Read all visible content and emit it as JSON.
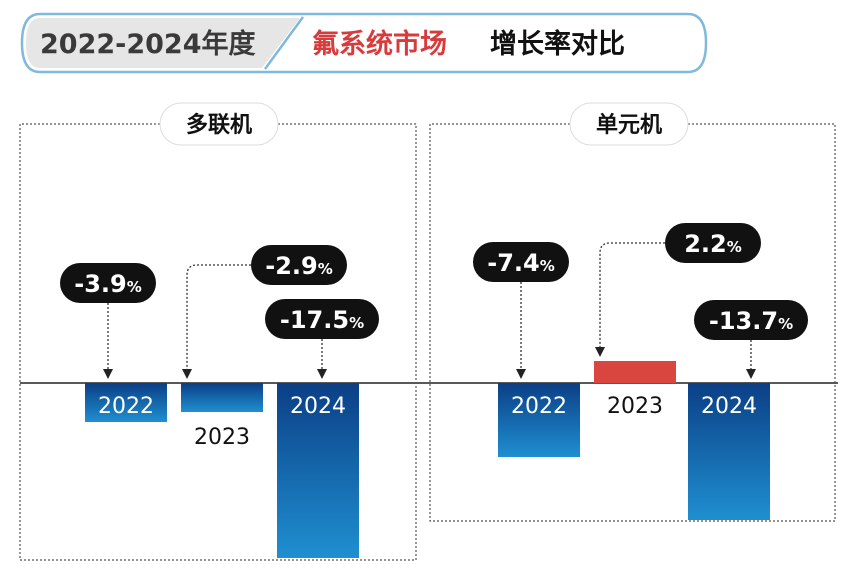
{
  "header": {
    "title_range": "2022-2024年度",
    "title_highlight": "氟系统市场",
    "title_rest": "增长率对比"
  },
  "colors": {
    "bar_negative_top": "#0b3f86",
    "bar_negative_bottom": "#1f8fd0",
    "bar_positive": "#d9453f",
    "callout_bg": "#111111",
    "highlight_text": "#d83b3b",
    "banner_border": "#7fb9dc"
  },
  "chart_data": [
    {
      "type": "bar",
      "title": "多联机",
      "categories": [
        "2022",
        "2023",
        "2024"
      ],
      "values": [
        -3.9,
        -2.9,
        -17.5
      ],
      "labels": [
        "-3.9%",
        "-2.9%",
        "-17.5%"
      ]
    },
    {
      "type": "bar",
      "title": "单元机",
      "categories": [
        "2022",
        "2023",
        "2024"
      ],
      "values": [
        -7.4,
        2.2,
        -13.7
      ],
      "labels": [
        "-7.4%",
        "2.2%",
        "-13.7%"
      ]
    }
  ]
}
